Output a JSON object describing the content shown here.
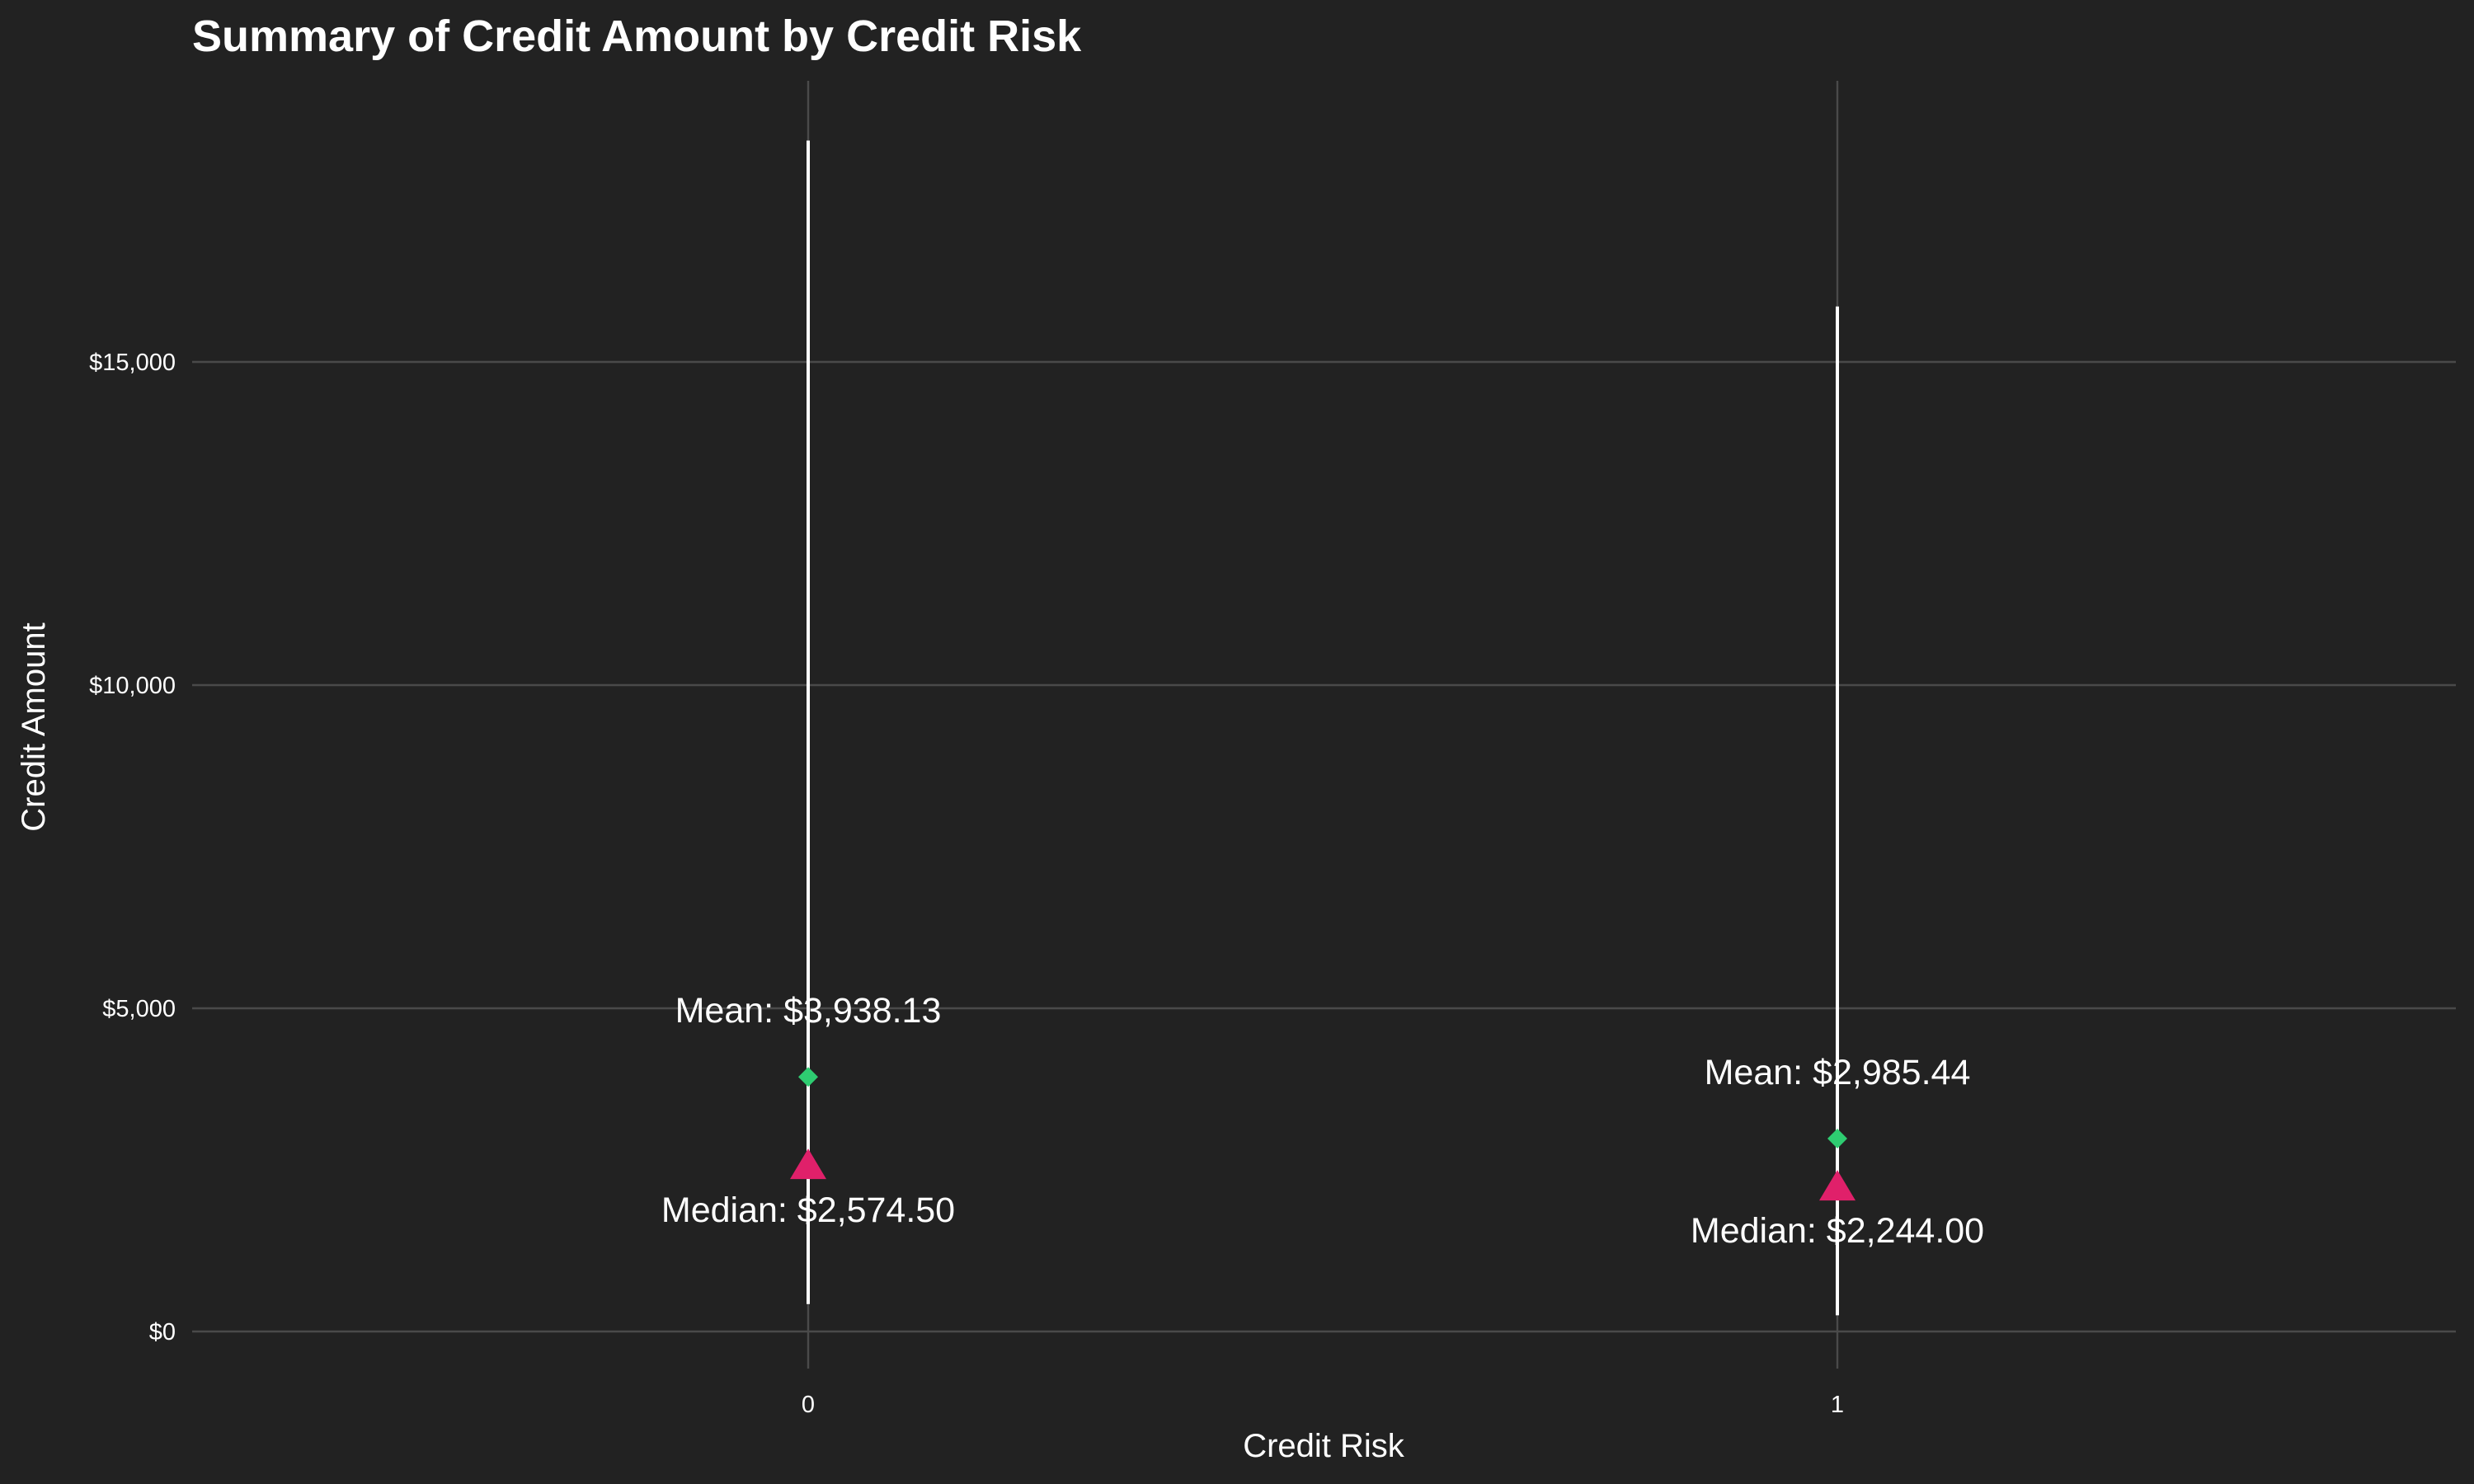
{
  "chart_data": {
    "type": "scatter",
    "title": "Summary of Credit Amount by Credit Risk",
    "xlabel": "Credit Risk",
    "ylabel": "Credit Amount",
    "categories": [
      "0",
      "1"
    ],
    "ylim": [
      -500,
      19500
    ],
    "yticks": [
      0,
      5000,
      10000,
      15000
    ],
    "ytick_labels": [
      "$0",
      "$5,000",
      "$10,000",
      "$15,000"
    ],
    "grid": true,
    "range": [
      {
        "min": 424,
        "max": 18424
      },
      {
        "min": 250,
        "max": 15857
      }
    ],
    "series": [
      {
        "name": "Mean",
        "values": [
          3938.13,
          2985.44
        ],
        "marker": "diamond",
        "color": "#2ecc71"
      },
      {
        "name": "Median",
        "values": [
          2574.5,
          2244.0
        ],
        "marker": "triangle",
        "color": "#e0206a"
      }
    ],
    "annotations": {
      "mean": [
        "Mean: $3,938.13",
        "Mean: $2,985.44"
      ],
      "median": [
        "Median: $2,574.50",
        "Median: $2,244.00"
      ]
    }
  }
}
